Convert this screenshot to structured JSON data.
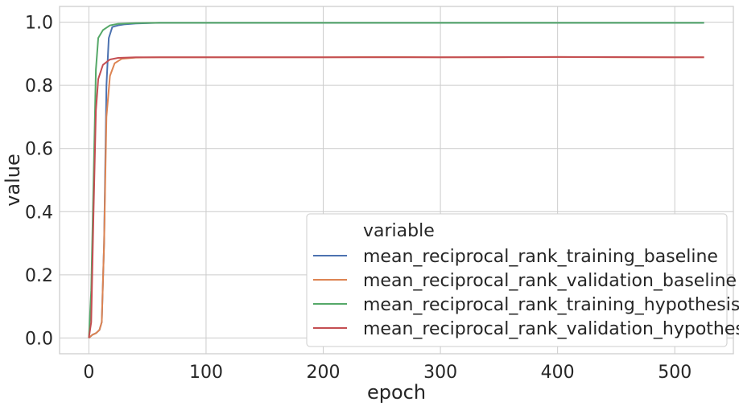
{
  "chart_data": {
    "type": "line",
    "xlabel": "epoch",
    "ylabel": "value",
    "xlim": [
      -25,
      550
    ],
    "ylim": [
      -0.05,
      1.05
    ],
    "xticks": [
      0,
      100,
      200,
      300,
      400,
      500
    ],
    "xtick_labels": [
      "0",
      "100",
      "200",
      "300",
      "400",
      "500"
    ],
    "yticks": [
      0.0,
      0.2,
      0.4,
      0.6,
      0.8,
      1.0
    ],
    "ytick_labels": [
      "0.0",
      "0.2",
      "0.4",
      "0.6",
      "0.8",
      "1.0"
    ],
    "grid": true,
    "legend": {
      "title": "variable",
      "placement": "bottom-right"
    },
    "series": [
      {
        "name": "mean_reciprocal_rank_training_baseline",
        "color": "#4c72b0",
        "points": [
          [
            0,
            0.0
          ],
          [
            3,
            0.01
          ],
          [
            6,
            0.015
          ],
          [
            9,
            0.025
          ],
          [
            11,
            0.05
          ],
          [
            13,
            0.3
          ],
          [
            15,
            0.8
          ],
          [
            17,
            0.95
          ],
          [
            20,
            0.985
          ],
          [
            25,
            0.99
          ],
          [
            30,
            0.993
          ],
          [
            40,
            0.996
          ],
          [
            60,
            0.998
          ],
          [
            100,
            0.998
          ],
          [
            200,
            0.998
          ],
          [
            300,
            0.998
          ],
          [
            400,
            0.998
          ],
          [
            500,
            0.998
          ],
          [
            525,
            0.998
          ]
        ]
      },
      {
        "name": "mean_reciprocal_rank_validation_baseline",
        "color": "#dd8452",
        "points": [
          [
            0,
            0.0
          ],
          [
            3,
            0.01
          ],
          [
            6,
            0.015
          ],
          [
            9,
            0.025
          ],
          [
            11,
            0.05
          ],
          [
            13,
            0.3
          ],
          [
            15,
            0.7
          ],
          [
            18,
            0.83
          ],
          [
            22,
            0.87
          ],
          [
            28,
            0.884
          ],
          [
            40,
            0.888
          ],
          [
            60,
            0.889
          ],
          [
            100,
            0.889
          ],
          [
            150,
            0.889
          ],
          [
            200,
            0.889
          ],
          [
            250,
            0.89
          ],
          [
            300,
            0.889
          ],
          [
            350,
            0.889
          ],
          [
            400,
            0.89
          ],
          [
            450,
            0.889
          ],
          [
            500,
            0.889
          ],
          [
            525,
            0.889
          ]
        ]
      },
      {
        "name": "mean_reciprocal_rank_training_hypothesis",
        "color": "#55a868",
        "points": [
          [
            0,
            0.0
          ],
          [
            2,
            0.15
          ],
          [
            4,
            0.5
          ],
          [
            6,
            0.85
          ],
          [
            8,
            0.95
          ],
          [
            12,
            0.975
          ],
          [
            18,
            0.99
          ],
          [
            25,
            0.995
          ],
          [
            40,
            0.997
          ],
          [
            60,
            0.998
          ],
          [
            100,
            0.998
          ],
          [
            200,
            0.998
          ],
          [
            300,
            0.998
          ],
          [
            400,
            0.998
          ],
          [
            500,
            0.998
          ],
          [
            525,
            0.998
          ]
        ]
      },
      {
        "name": "mean_reciprocal_rank_validation_hypothesis",
        "color": "#c44e52",
        "points": [
          [
            0,
            0.0
          ],
          [
            2,
            0.05
          ],
          [
            4,
            0.4
          ],
          [
            6,
            0.72
          ],
          [
            8,
            0.82
          ],
          [
            12,
            0.865
          ],
          [
            18,
            0.882
          ],
          [
            25,
            0.887
          ],
          [
            40,
            0.889
          ],
          [
            60,
            0.889
          ],
          [
            100,
            0.889
          ],
          [
            200,
            0.889
          ],
          [
            300,
            0.889
          ],
          [
            400,
            0.89
          ],
          [
            500,
            0.889
          ],
          [
            525,
            0.889
          ]
        ]
      }
    ]
  }
}
